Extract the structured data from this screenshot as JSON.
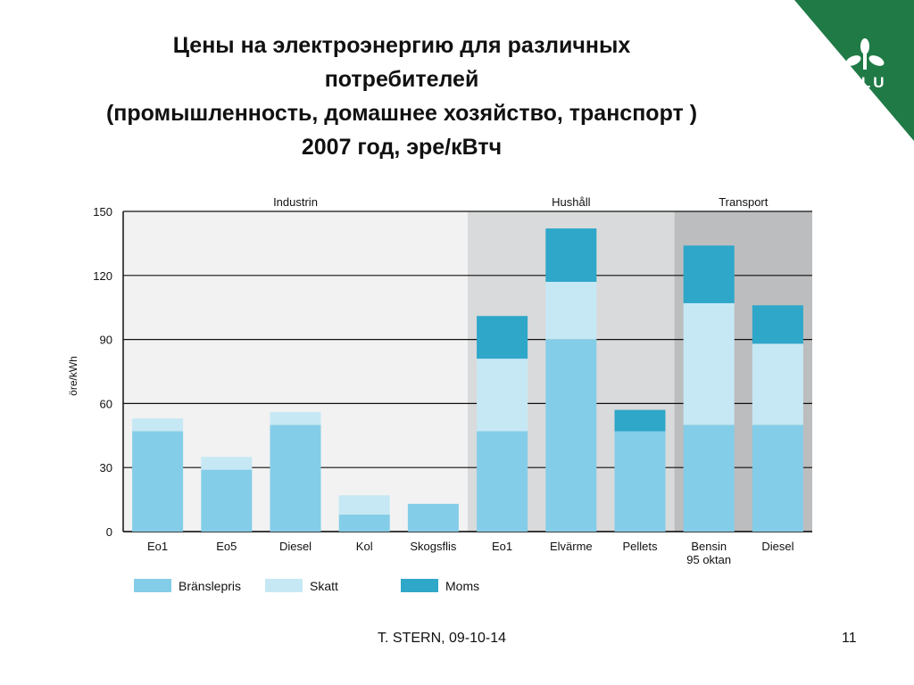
{
  "slide": {
    "title_lines": [
      "Цены на электроэнергию для различных",
      "потребителей",
      "(промышленность, домашнее хозяйство, транспорт )",
      "2007 год, эре/кВтч"
    ],
    "logo_text": "SLU",
    "footer_author": "T. STERN, 09-10-14",
    "page_number": "11"
  },
  "colors": {
    "bränslepris": "#84cde8",
    "skatt": "#c6e8f4",
    "moms": "#2ea7c9",
    "panel_industrin": "#f2f2f2",
    "panel_hushall": "#d9dadb",
    "panel_transport": "#bcbdbe",
    "logo_green": "#1f7a46"
  },
  "chart_data": {
    "type": "bar",
    "stacked": true,
    "ylabel": "öre/kWh",
    "ylim": [
      0,
      150
    ],
    "yticks": [
      0,
      30,
      60,
      90,
      120,
      150
    ],
    "grid": true,
    "legend_position": "bottom",
    "groups": [
      {
        "name": "Industrin",
        "categories": [
          "Eo1",
          "Eo5",
          "Diesel",
          "Kol",
          "Skogsflis"
        ]
      },
      {
        "name": "Hushåll",
        "categories": [
          "Eo1",
          "Elvärme",
          "Pellets"
        ]
      },
      {
        "name": "Transport",
        "categories": [
          "Bensin\n95 oktan",
          "Diesel"
        ]
      }
    ],
    "categories": [
      "Eo1",
      "Eo5",
      "Diesel",
      "Kol",
      "Skogsflis",
      "Eo1",
      "Elvärme",
      "Pellets",
      "Bensin\n95 oktan",
      "Diesel"
    ],
    "series": [
      {
        "name": "Bränslepris",
        "values": [
          47,
          29,
          50,
          8,
          13,
          47,
          90,
          47,
          50,
          50
        ]
      },
      {
        "name": "Skatt",
        "values": [
          6,
          6,
          6,
          9,
          0,
          34,
          27,
          0,
          57,
          38
        ]
      },
      {
        "name": "Moms",
        "values": [
          0,
          0,
          0,
          0,
          0,
          20,
          25,
          10,
          27,
          18
        ]
      }
    ]
  }
}
